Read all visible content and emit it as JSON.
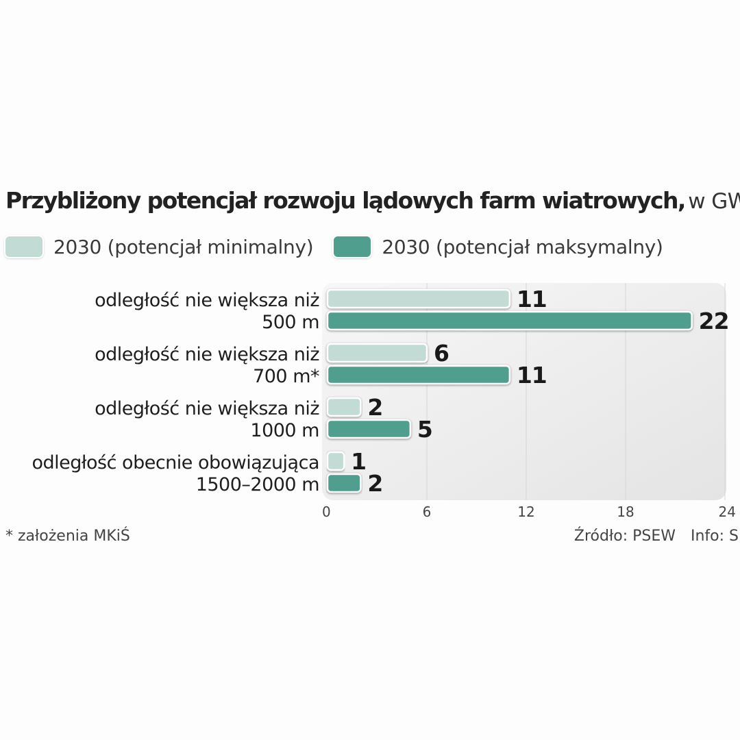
{
  "chart_data": {
    "type": "bar",
    "orientation": "horizontal",
    "title": "Przybliżony potencjał rozwoju lądowych farm wiatrowych,",
    "unit": "w GW",
    "categories": [
      [
        "odległość nie większa niż",
        "500 m"
      ],
      [
        "odległość nie większa niż",
        "700 m*"
      ],
      [
        "odległość nie większa niż",
        "1000 m"
      ],
      [
        "odległość obecnie obowiązująca",
        "1500–2000 m"
      ]
    ],
    "series": [
      {
        "name": "2030 (potencjał minimalny)",
        "color": "#c2dbd4",
        "values": [
          11,
          6,
          2,
          1
        ]
      },
      {
        "name": "2030 (potencjał maksymalny)",
        "color": "#4f9e8e",
        "values": [
          22,
          11,
          5,
          2
        ]
      }
    ],
    "xlim": [
      0,
      24
    ],
    "xticks": [
      0,
      6,
      12,
      18,
      24
    ],
    "grid": true,
    "legend_position": "top"
  },
  "footnote": "* założenia MKiŚ",
  "source": "Źródło: PSEW",
  "info": "Info: S"
}
